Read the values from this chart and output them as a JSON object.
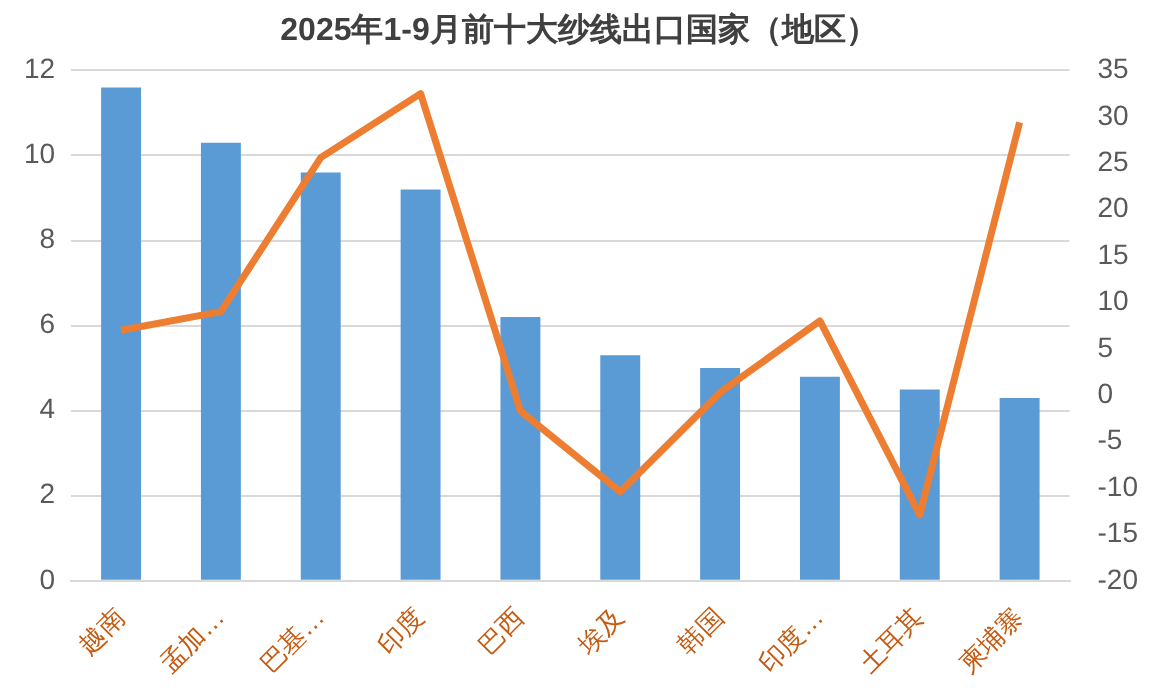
{
  "chart_data": {
    "type": "bar",
    "title": "2025年1-9月前十大纱线出口国家（地区）",
    "categories": [
      "越南",
      "孟加…",
      "巴基…",
      "印度",
      "巴西",
      "埃及",
      "韩国",
      "印度…",
      "土耳其",
      "柬埔寨"
    ],
    "series": [
      {
        "color": "#5b9bd5",
        "values": [
          11.6,
          10.3,
          9.6,
          9.2,
          6.2,
          5.3,
          5.0,
          4.8,
          4.5,
          4.3
        ]
      },
      {
        "type": "line",
        "axis": "y2",
        "color": "#ed7d31",
        "values": [
          7,
          9,
          25.6,
          32.5,
          -1.7,
          -10.4,
          0.3,
          8,
          -12.9,
          29.4
        ]
      }
    ],
    "ylim": [
      0,
      12
    ],
    "yticks": [
      0,
      2,
      4,
      6,
      8,
      10,
      12
    ],
    "y2lim": [
      -20,
      35
    ],
    "y2ticks": [
      -20,
      -15,
      -10,
      -5,
      0,
      5,
      10,
      15,
      20,
      25,
      30,
      35
    ],
    "grid": "y",
    "legend": false,
    "marker": "none"
  }
}
